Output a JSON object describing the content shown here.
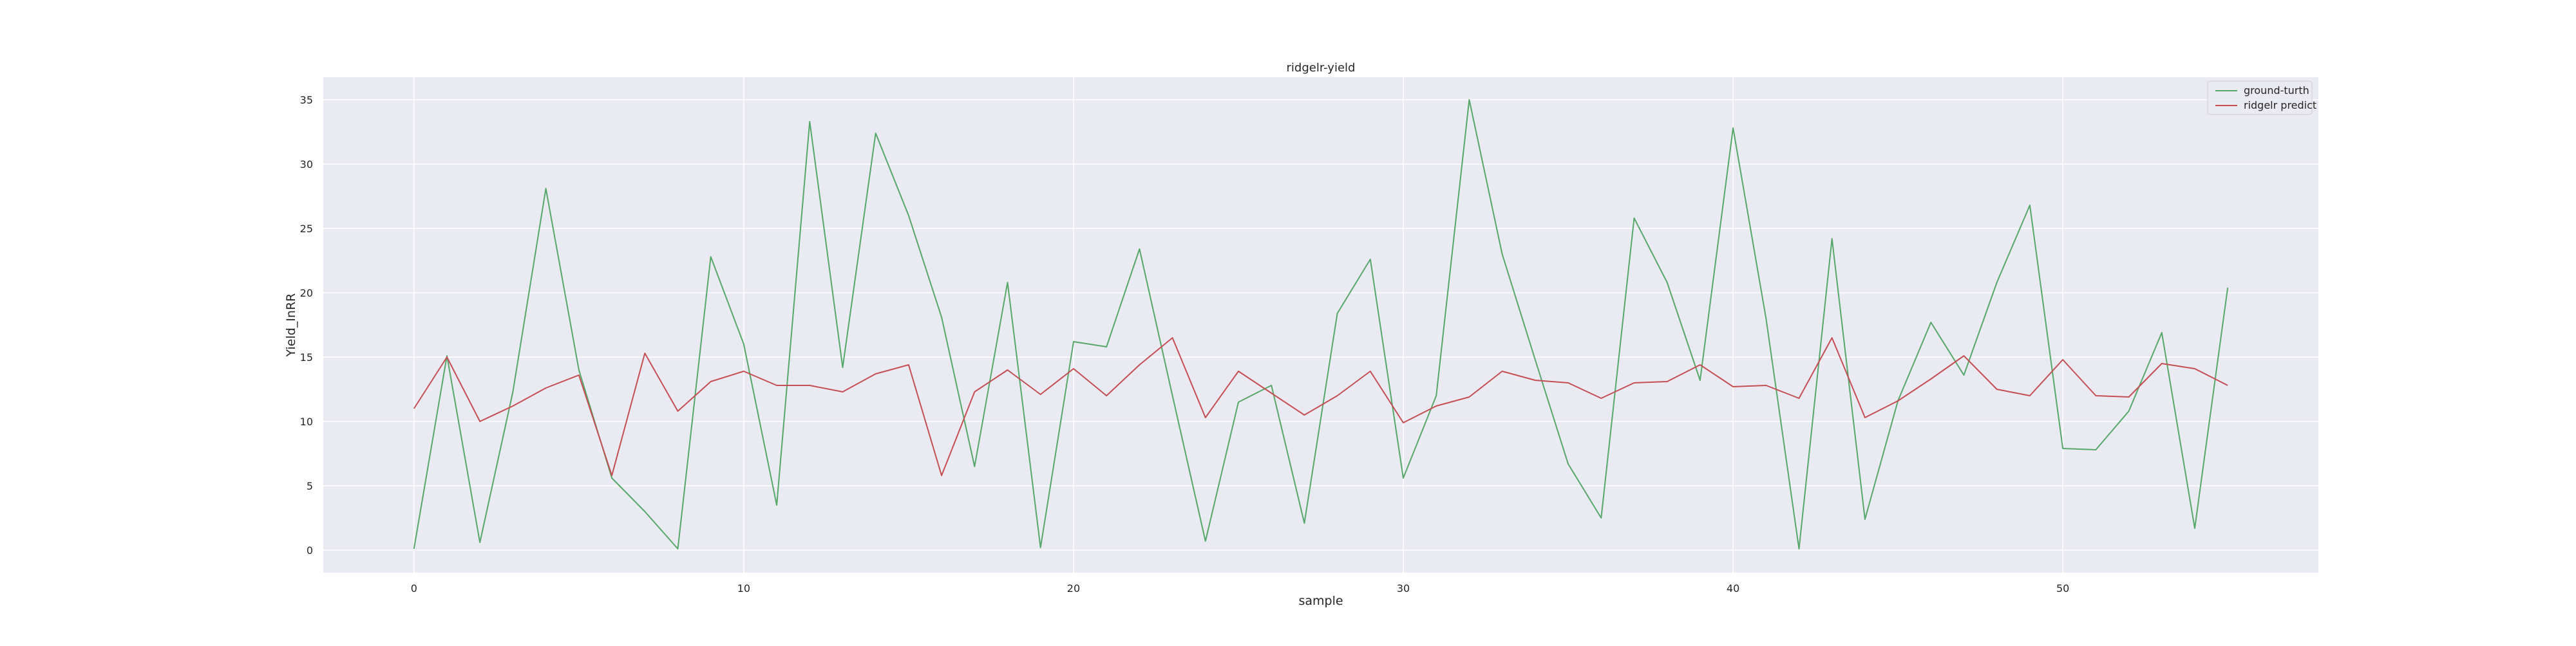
{
  "chart_data": {
    "type": "line",
    "title": "ridgelr-yield",
    "xlabel": "sample",
    "ylabel": "Yield_InRR",
    "xlim": [
      -2.75,
      57.75
    ],
    "ylim": [
      -1.75,
      36.75
    ],
    "xticks": [
      0,
      10,
      20,
      30,
      40,
      50
    ],
    "yticks": [
      0,
      5,
      10,
      15,
      20,
      25,
      30,
      35
    ],
    "grid": true,
    "legend_position": "top-right",
    "x": [
      0,
      1,
      2,
      3,
      4,
      5,
      6,
      7,
      8,
      9,
      10,
      11,
      12,
      13,
      14,
      15,
      16,
      17,
      18,
      19,
      20,
      21,
      22,
      23,
      24,
      25,
      26,
      27,
      28,
      29,
      30,
      31,
      32,
      33,
      34,
      35,
      36,
      37,
      38,
      39,
      40,
      41,
      42,
      43,
      44,
      45,
      46,
      47,
      48,
      49,
      50,
      51,
      52,
      53,
      54,
      55
    ],
    "series": [
      {
        "name": "ground-turth",
        "color": "#55a868",
        "values": [
          0.1,
          15.1,
          0.6,
          12.3,
          28.1,
          14.0,
          5.6,
          3.0,
          0.1,
          22.8,
          16.0,
          3.5,
          33.3,
          14.2,
          32.4,
          26.0,
          18.1,
          6.5,
          20.8,
          0.2,
          16.2,
          15.8,
          23.4,
          12.0,
          0.7,
          11.5,
          12.8,
          2.1,
          18.4,
          22.6,
          5.6,
          12.0,
          35.0,
          23.0,
          14.8,
          6.7,
          2.5,
          25.8,
          20.8,
          13.2,
          32.8,
          18.0,
          0.1,
          24.2,
          2.4,
          11.6,
          17.7,
          13.6,
          20.8,
          26.8,
          7.9,
          7.8,
          10.8,
          16.9,
          1.7,
          20.4
        ]
      },
      {
        "name": "ridgelr predict",
        "color": "#c44e52",
        "values": [
          11.0,
          15.0,
          10.0,
          11.2,
          12.6,
          13.6,
          5.8,
          15.3,
          10.8,
          13.1,
          13.9,
          12.8,
          12.8,
          12.3,
          13.7,
          14.4,
          5.8,
          12.3,
          14.0,
          12.1,
          14.1,
          12.0,
          14.4,
          16.5,
          10.3,
          13.9,
          12.2,
          10.5,
          12.0,
          13.9,
          9.9,
          11.2,
          11.9,
          13.9,
          13.2,
          13.0,
          11.8,
          13.0,
          13.1,
          14.4,
          12.7,
          12.8,
          11.8,
          16.5,
          10.3,
          11.6,
          13.3,
          15.1,
          12.5,
          12.0,
          14.8,
          12.0,
          11.9,
          14.5,
          14.1,
          12.8
        ]
      }
    ]
  }
}
